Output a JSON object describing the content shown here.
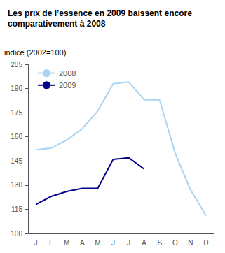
{
  "chart_data": {
    "type": "line",
    "title": "Les prix de l’essence en 2009 baissent encore comparativement à 2008",
    "y_label": "indice (2002=100)",
    "categories": [
      "J",
      "F",
      "M",
      "A",
      "M",
      "J",
      "J",
      "A",
      "S",
      "O",
      "N",
      "D"
    ],
    "series": [
      {
        "name": "2008",
        "color": "#a8d4f0",
        "values": [
          152,
          153,
          158,
          165,
          176,
          193,
          194,
          183,
          183,
          150,
          127,
          111
        ]
      },
      {
        "name": "2009",
        "color": "#00008B",
        "values": [
          118,
          123,
          126,
          128,
          128,
          146,
          147,
          140,
          null,
          null,
          null,
          null
        ]
      }
    ],
    "ylim": [
      100,
      205
    ],
    "yticks": [
      100,
      115,
      130,
      145,
      160,
      175,
      190,
      205
    ],
    "grid": false,
    "legend": "upper left"
  }
}
